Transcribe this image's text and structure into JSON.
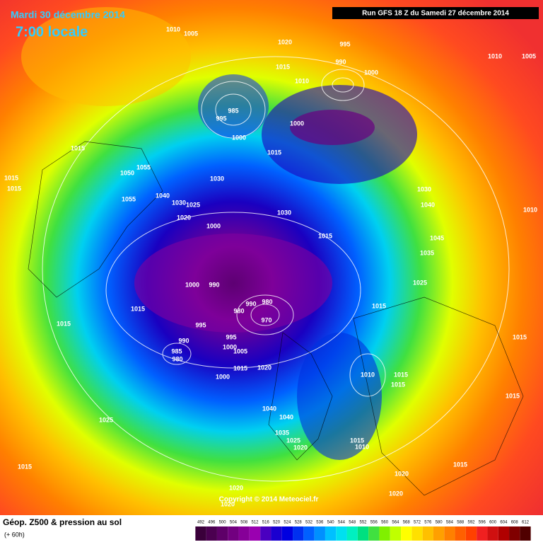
{
  "header": {
    "date": "Mardi 30 décembre 2014",
    "time": "7:00 locale",
    "run": "Run GFS 18 Z du Samedi 27 décembre 2014"
  },
  "copyright": "Copyright © 2014 Meteociel.fr",
  "footer": {
    "title": "Géop. Z500 & pression au sol",
    "lead": "(+ 60h)"
  },
  "colorbar": {
    "ticks": [
      492,
      496,
      500,
      504,
      508,
      512,
      516,
      520,
      524,
      528,
      532,
      536,
      540,
      544,
      548,
      552,
      556,
      560,
      564,
      568,
      572,
      576,
      580,
      584,
      588,
      592,
      596,
      600,
      604,
      608,
      612
    ],
    "colors": [
      "#3a003a",
      "#4b0050",
      "#5e0068",
      "#720080",
      "#860098",
      "#9a00b0",
      "#4a00c0",
      "#1a00d0",
      "#0000e0",
      "#0030f0",
      "#0060ff",
      "#0090ff",
      "#00c0ff",
      "#00e0f0",
      "#00f0c0",
      "#00e080",
      "#40e040",
      "#80f000",
      "#c0ff00",
      "#ffff00",
      "#ffe000",
      "#ffc000",
      "#ffa000",
      "#ff8000",
      "#ff6000",
      "#ff4000",
      "#f02020",
      "#d01010",
      "#b00000",
      "#800000",
      "#500000"
    ]
  },
  "isobar_labels": [
    1010,
    1005,
    1020,
    995,
    1010,
    1005,
    1015,
    990,
    1000,
    1010,
    985,
    995,
    1000,
    1000,
    1015,
    1015,
    1055,
    1050,
    1015,
    1015,
    1030,
    1055,
    1040,
    1030,
    1025,
    1020,
    1030,
    1040,
    1010,
    1030,
    1000,
    1015,
    1045,
    1035,
    1000,
    990,
    1025,
    1015,
    980,
    990,
    980,
    970,
    1015,
    1015,
    995,
    995,
    990,
    1000,
    1005,
    985,
    980,
    1015,
    1015,
    1020,
    1000,
    1010,
    1015,
    1015,
    1015,
    1040,
    1040,
    1035,
    1025,
    1020,
    1015,
    1010,
    1025,
    1015,
    1020,
    1015,
    1020,
    1020,
    1020
  ]
}
